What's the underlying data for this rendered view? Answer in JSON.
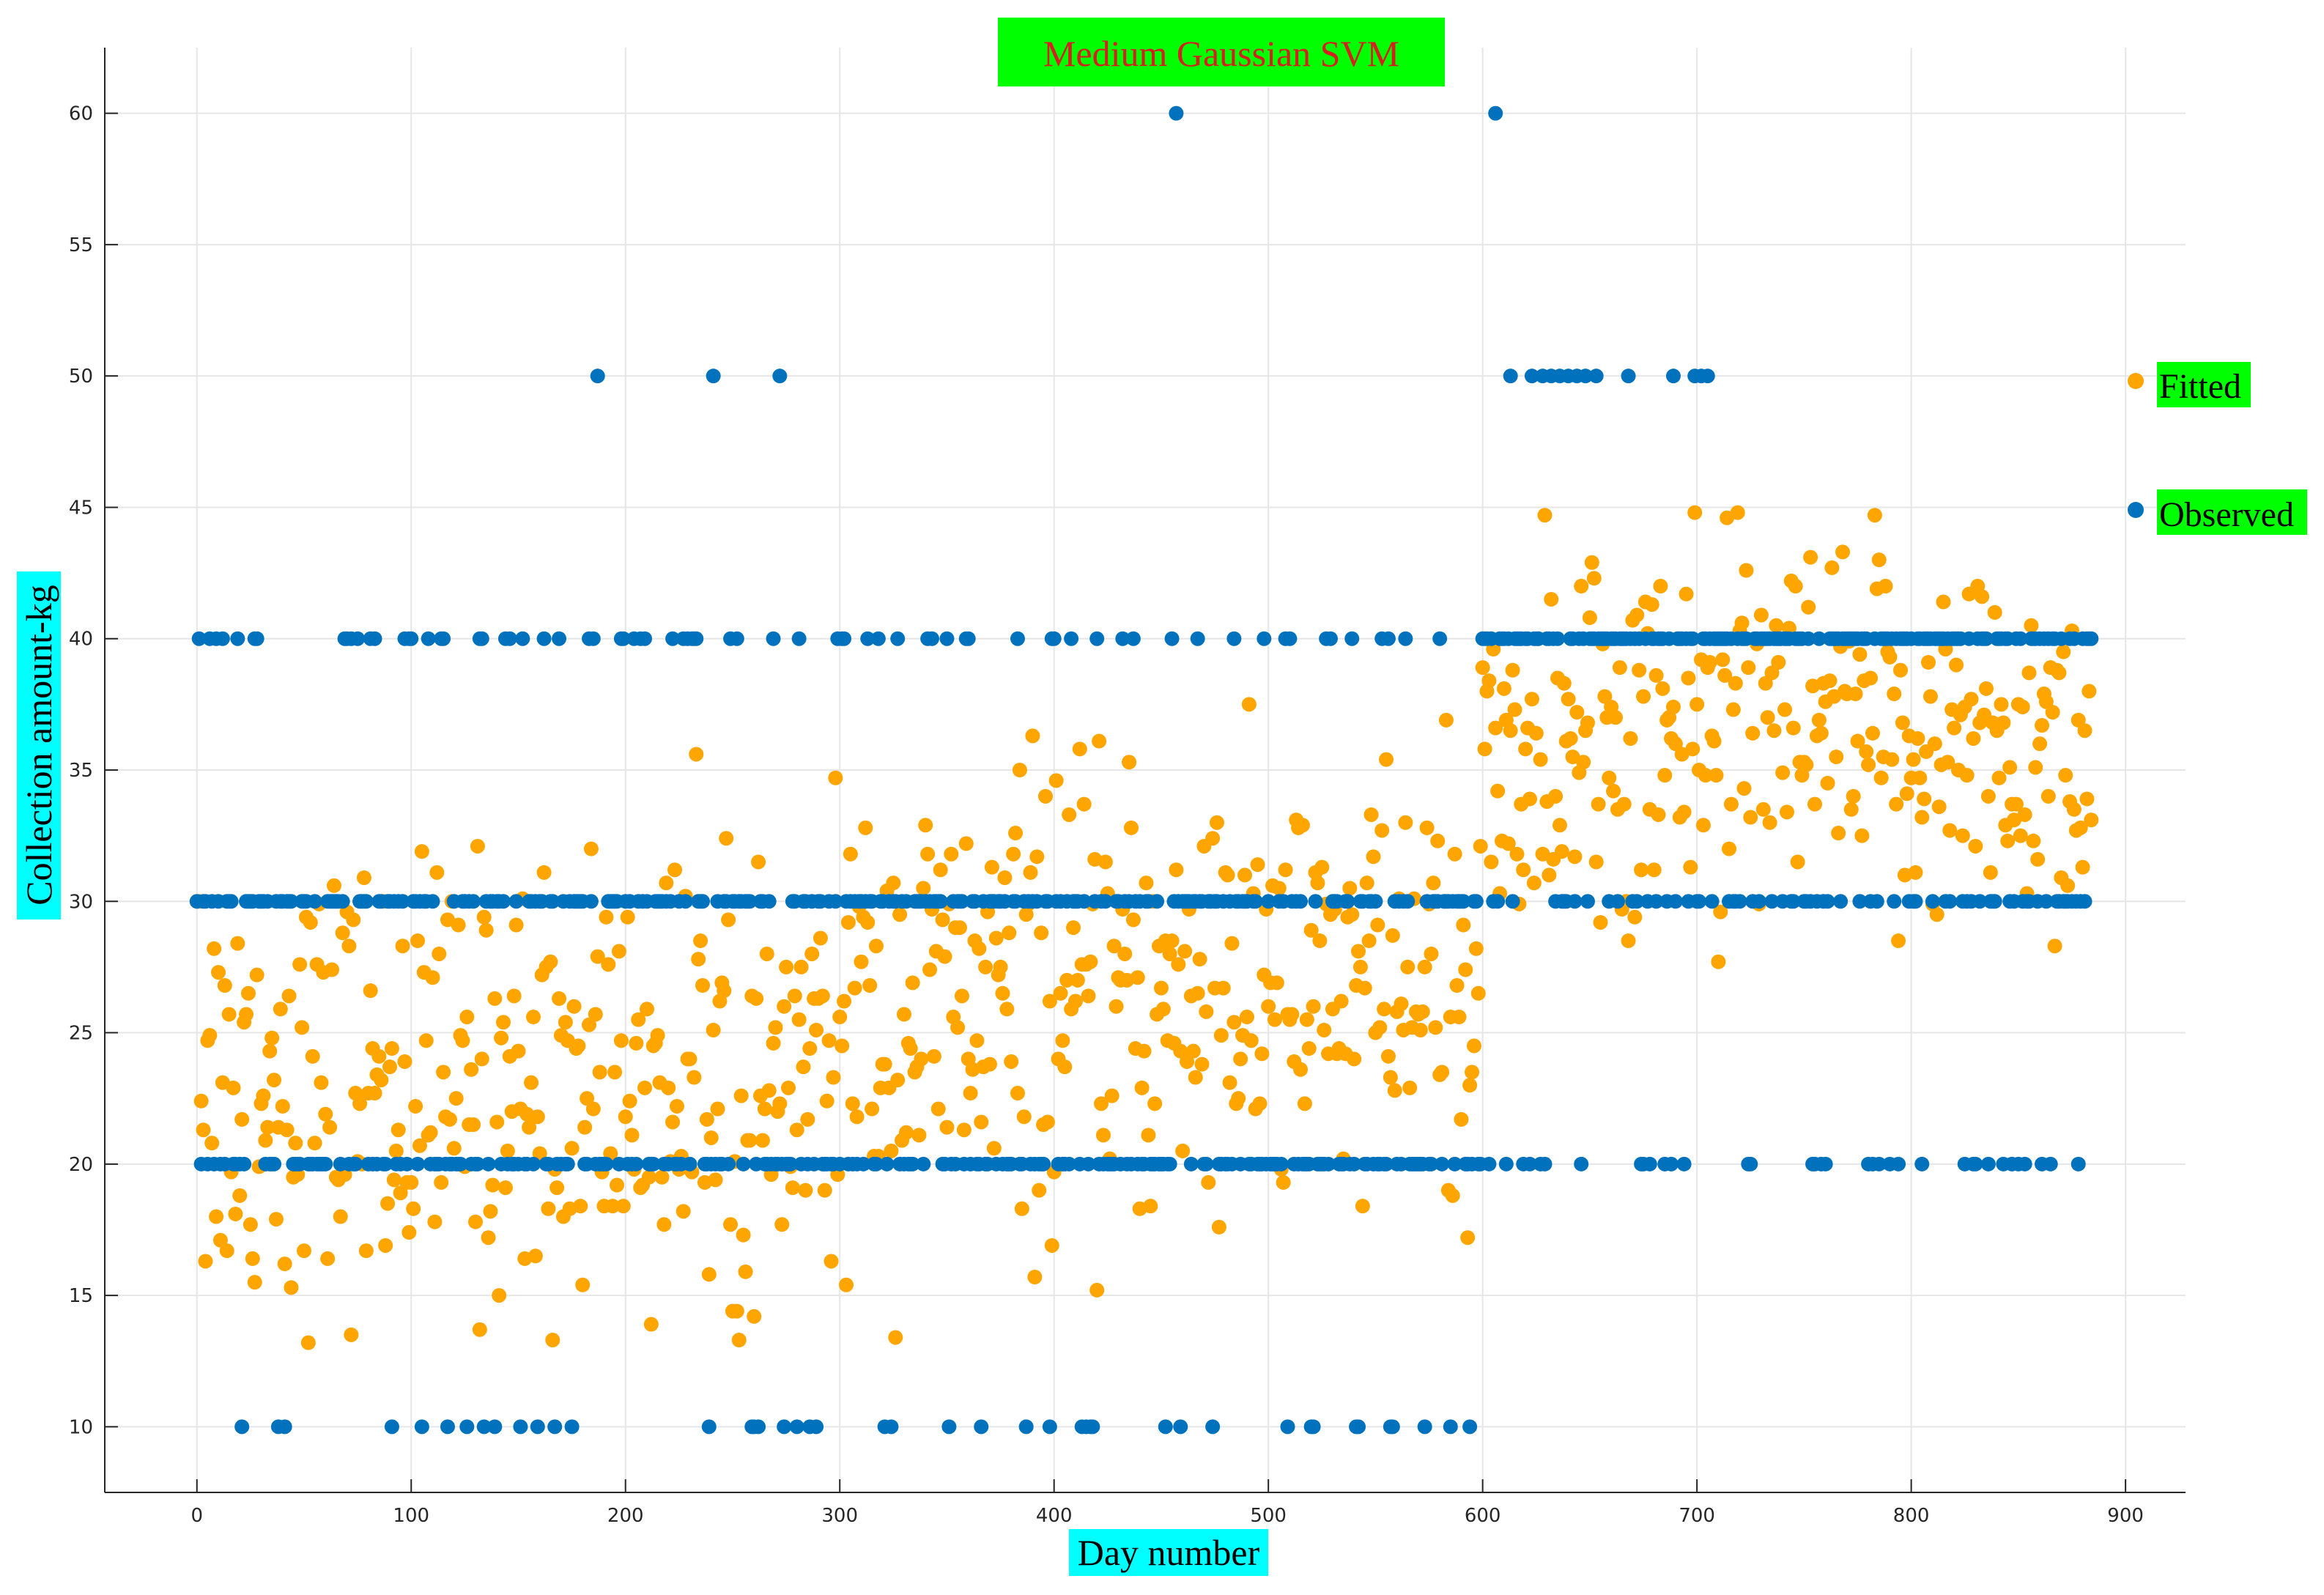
{
  "chart_data": {
    "type": "scatter",
    "title": "Medium Gaussian SVM",
    "xlabel": "Day number",
    "ylabel": "Collection amount-kg",
    "xlim": [
      -43,
      928
    ],
    "ylim": [
      7.5,
      62.5
    ],
    "xticks": [
      "0",
      "100",
      "200",
      "300",
      "400",
      "500",
      "600",
      "700",
      "800",
      "900"
    ],
    "yticks": [
      "10",
      "15",
      "20",
      "25",
      "30",
      "35",
      "40",
      "45",
      "50",
      "55",
      "60"
    ],
    "grid": true,
    "legend_position": "right",
    "colors": {
      "observed": "#0072bd",
      "fitted": "#ffa500",
      "title_bg": "#00ff00",
      "title_text": "#d42020",
      "axis_label_bg": "#00ffff",
      "legend_label_bg": "#00ff00"
    },
    "series": [
      {
        "name": "Fitted",
        "color": "#ffa500",
        "points": []
      },
      {
        "name": "Observed",
        "color": "#0072bd",
        "points": []
      }
    ]
  }
}
